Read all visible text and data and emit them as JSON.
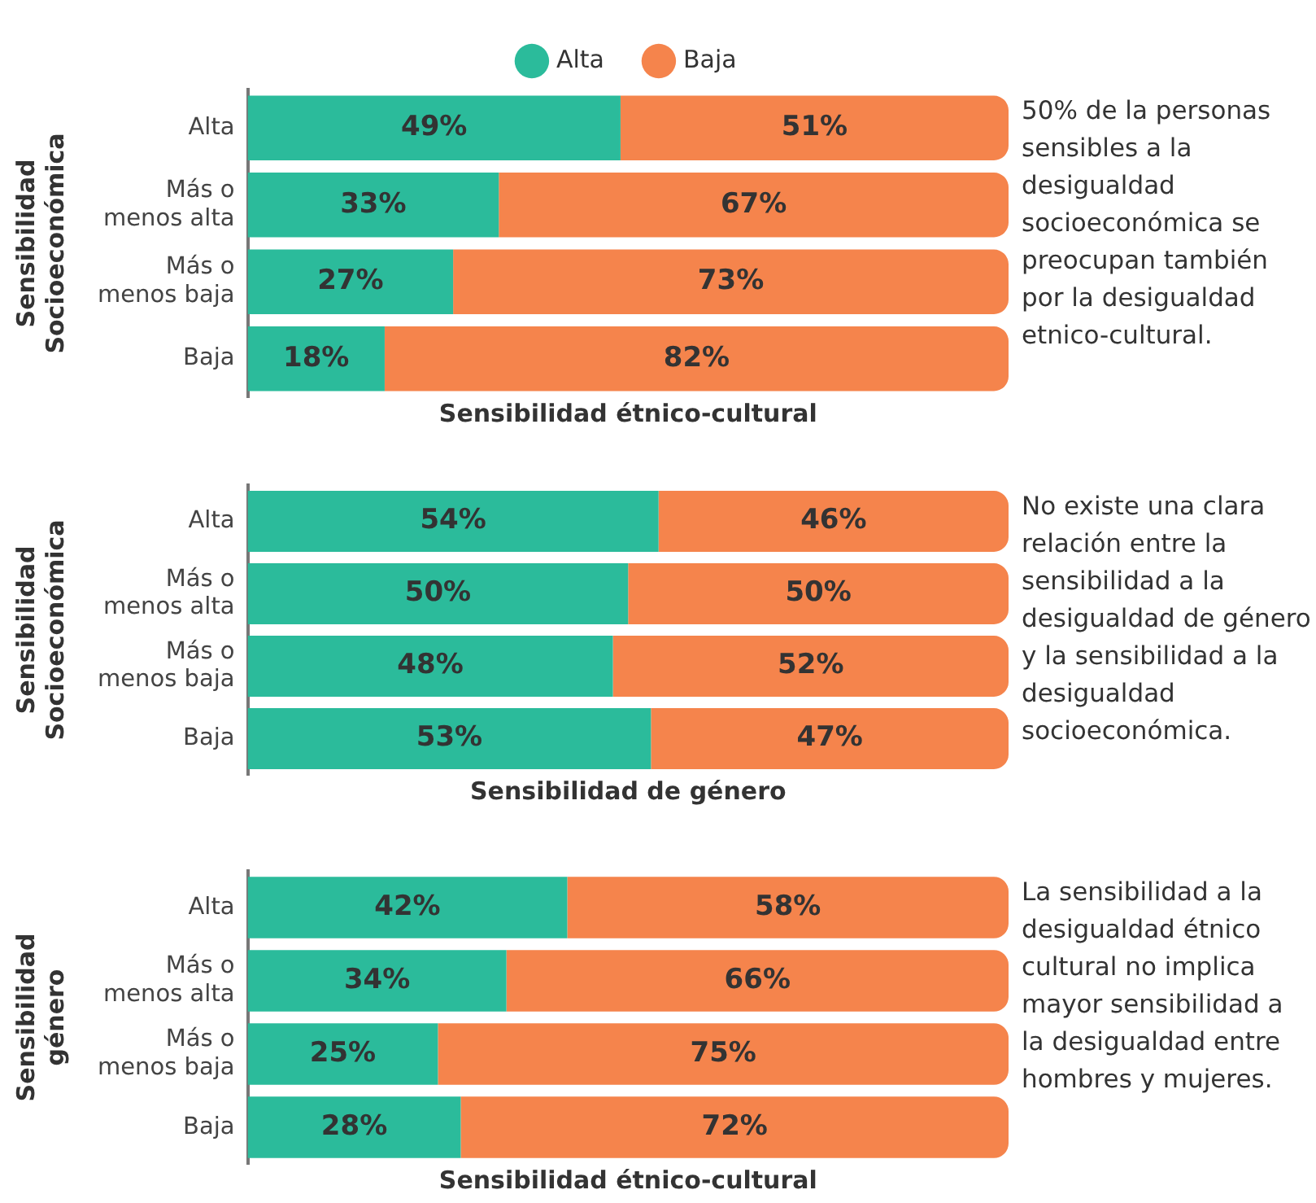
{
  "chart_data": [
    {
      "type": "bar",
      "orientation": "horizontal",
      "stacked": true,
      "legend": "top",
      "tick_labels": "y",
      "xlim": [
        0,
        100
      ],
      "ylabel": "Sensibilidad\nSocioeconómica",
      "xlabel": "Sensibilidad étnico-cultural",
      "categories": [
        "Alta",
        "Más o\nmenos alta",
        "Más o\nmenos baja",
        "Baja"
      ],
      "series": [
        {
          "name": "Alta",
          "color": "#2bbb9b",
          "values": [
            49,
            33,
            27,
            18
          ],
          "value_labels": [
            "49%",
            "33%",
            "27%",
            "18%"
          ]
        },
        {
          "name": "Baja",
          "color": "#f5844c",
          "values": [
            51,
            67,
            73,
            82
          ],
          "value_labels": [
            "51%",
            "67%",
            "73%",
            "82%"
          ]
        }
      ],
      "annotations": [
        "50% de la personas sensibles a la desigualdad socioeconómica se preocupan también por la desigualdad etnico-cultural."
      ]
    },
    {
      "type": "bar",
      "orientation": "horizontal",
      "stacked": true,
      "tick_labels": "y",
      "xlim": [
        0,
        100
      ],
      "ylabel": "Sensibilidad\nSocioeconómica",
      "xlabel": "Sensibilidad de género",
      "categories": [
        "Alta",
        "Más o\nmenos alta",
        "Más o\nmenos baja",
        "Baja"
      ],
      "series": [
        {
          "color": "#2bbb9b",
          "values": [
            54,
            50,
            48,
            53
          ],
          "value_labels": [
            "54%",
            "50%",
            "48%",
            "53%"
          ]
        },
        {
          "color": "#f5844c",
          "values": [
            46,
            50,
            52,
            47
          ],
          "value_labels": [
            "46%",
            "50%",
            "52%",
            "47%"
          ]
        }
      ],
      "annotations": [
        "No existe una clara relación entre la sensibilidad a la desigualdad de género y la  sensibilidad a la desigualdad socioeconómica."
      ]
    },
    {
      "type": "bar",
      "orientation": "horizontal",
      "stacked": true,
      "tick_labels": "y",
      "xlim": [
        0,
        100
      ],
      "ylabel": "Sensibilidad\ngénero",
      "xlabel": "Sensibilidad étnico-cultural",
      "categories": [
        "Alta",
        "Más o\nmenos alta",
        "Más o\nmenos baja",
        "Baja"
      ],
      "series": [
        {
          "color": "#2bbb9b",
          "values": [
            42,
            34,
            25,
            28
          ],
          "value_labels": [
            "42%",
            "34%",
            "25%",
            "28%"
          ]
        },
        {
          "color": "#f5844c",
          "values": [
            58,
            66,
            75,
            72
          ],
          "value_labels": [
            "58%",
            "66%",
            "75%",
            "72%"
          ]
        }
      ],
      "annotations": [
        "La sensibilidad a la desigualdad étnico cultural no implica mayor sensibilidad a la desigualdad entre hombres y mujeres."
      ]
    }
  ]
}
